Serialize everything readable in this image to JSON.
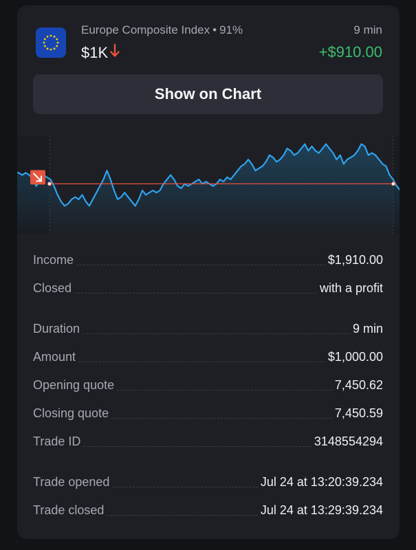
{
  "asset": {
    "name": "Europe Composite Index",
    "separator": "•",
    "payout": "91%",
    "amount": "$1K",
    "direction_icon": "down-arrow-icon",
    "flag_icon": "eu-flag-icon",
    "duration": "9 min",
    "profit": "+$910.00"
  },
  "actions": {
    "show_chart": "Show on Chart"
  },
  "colors": {
    "profit": "#3ebd6d",
    "down_arrow": "#e9533d",
    "line": "#2ea3ee",
    "strike_line": "#e9533d",
    "marker": "#e4553e"
  },
  "chart_data": {
    "type": "line",
    "title": "",
    "xlabel": "",
    "ylabel": "",
    "strike": 7450.62,
    "ylim": [
      7450.4,
      7450.83
    ],
    "series": [
      {
        "values": [
          7450.67,
          7450.67,
          7450.66,
          7450.67,
          7450.66,
          7450.64,
          7450.61,
          7450.63,
          7450.66,
          7450.65,
          7450.64,
          7450.61,
          7450.57,
          7450.54,
          7450.52,
          7450.53,
          7450.55,
          7450.56,
          7450.55,
          7450.57,
          7450.54,
          7450.52,
          7450.55,
          7450.58,
          7450.61,
          7450.64,
          7450.68,
          7450.64,
          7450.59,
          7450.55,
          7450.56,
          7450.58,
          7450.56,
          7450.54,
          7450.52,
          7450.55,
          7450.59,
          7450.57,
          7450.58,
          7450.59,
          7450.58,
          7450.59,
          7450.62,
          7450.64,
          7450.66,
          7450.64,
          7450.61,
          7450.6,
          7450.62,
          7450.61,
          7450.62,
          7450.63,
          7450.64,
          7450.62,
          7450.63,
          7450.62,
          7450.61,
          7450.62,
          7450.64,
          7450.63,
          7450.65,
          7450.64,
          7450.66,
          7450.68,
          7450.7,
          7450.71,
          7450.73,
          7450.71,
          7450.68,
          7450.69,
          7450.7,
          7450.72,
          7450.75,
          7450.74,
          7450.72,
          7450.73,
          7450.75,
          7450.78,
          7450.77,
          7450.75,
          7450.76,
          7450.78,
          7450.8,
          7450.77,
          7450.79,
          7450.77,
          7450.76,
          7450.78,
          7450.8,
          7450.78,
          7450.76,
          7450.73,
          7450.75,
          7450.71,
          7450.73,
          7450.74,
          7450.75,
          7450.77,
          7450.8,
          7450.79,
          7450.75,
          7450.76,
          7450.75,
          7450.73,
          7450.71,
          7450.7,
          7450.66,
          7450.64,
          7450.61,
          7450.59
        ]
      }
    ]
  },
  "details": {
    "rows": [
      {
        "label": "Income",
        "value": "$1,910.00"
      },
      {
        "label": "Closed",
        "value": "with a profit"
      },
      {
        "label": "Duration",
        "value": "9 min"
      },
      {
        "label": "Amount",
        "value": "$1,000.00"
      },
      {
        "label": "Opening quote",
        "value": "7,450.62"
      },
      {
        "label": "Closing quote",
        "value": "7,450.59"
      },
      {
        "label": "Trade ID",
        "value": "3148554294"
      },
      {
        "label": "Trade opened",
        "value": "Jul 24 at 13:20:39.234"
      },
      {
        "label": "Trade closed",
        "value": "Jul 24 at 13:29:39.234"
      }
    ]
  }
}
